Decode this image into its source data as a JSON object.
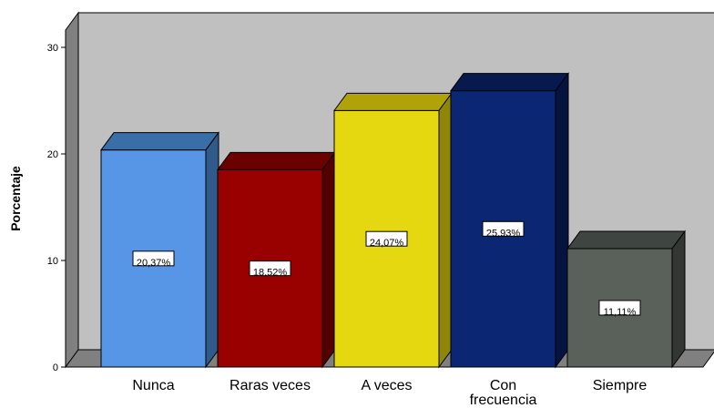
{
  "chart_data": {
    "type": "bar",
    "style": "3d",
    "categories": [
      "Nunca",
      "Raras veces",
      "A veces",
      "Con frecuencia",
      "Siempre"
    ],
    "category_label_lines": [
      [
        "Nunca"
      ],
      [
        "Raras veces"
      ],
      [
        "A veces"
      ],
      [
        "Con",
        "frecuencia"
      ],
      [
        "Siempre"
      ]
    ],
    "values": [
      20.37,
      18.52,
      24.07,
      25.93,
      11.11
    ],
    "data_labels": [
      "20,37%",
      "18,52%",
      "24,07%",
      "25,93%",
      "11,11%"
    ],
    "title": "",
    "xlabel": "",
    "ylabel": "Porcentaje",
    "ylim": [
      0,
      30
    ],
    "yticks": [
      0,
      10,
      20,
      30
    ],
    "grid": false,
    "legend": "none",
    "colors": {
      "bars": [
        "#5795e6",
        "#990000",
        "#e6d810",
        "#0b2673",
        "#5a615b"
      ],
      "bar_tops": [
        "#3a6ea6",
        "#6a0000",
        "#b0a30a",
        "#061a50",
        "#3f4540"
      ],
      "bar_sides": [
        "#2f5a8a",
        "#550000",
        "#8f8508",
        "#04143f",
        "#323733"
      ],
      "back_wall": "#c0c0c0",
      "side_wall": "#808080",
      "floor": "#808080"
    }
  }
}
